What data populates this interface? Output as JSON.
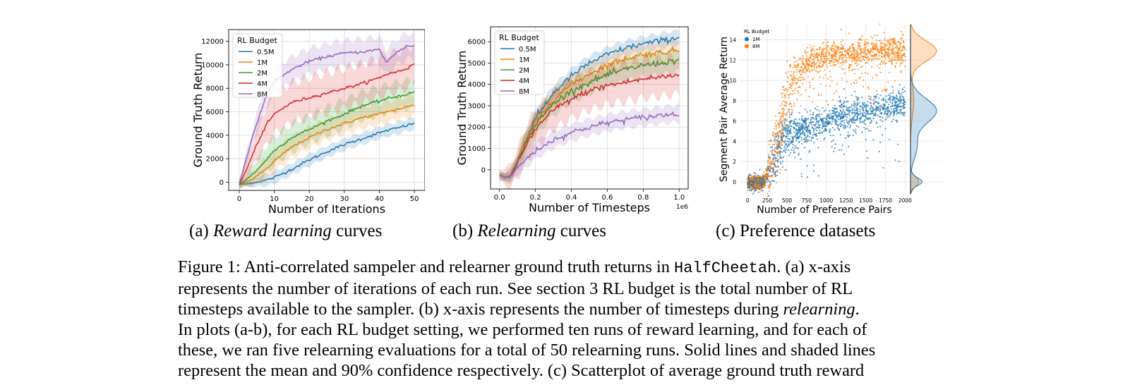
{
  "figure": {
    "panels": [
      {
        "id": "a",
        "xlabel": "Number of Iterations",
        "ylabel": "Ground Truth Return",
        "caption_prefix": "(a) ",
        "caption_italic": "Reward learning",
        "caption_suffix": " curves"
      },
      {
        "id": "b",
        "xlabel": "Number of Timesteps",
        "ylabel": "Ground Truth Return",
        "x_offset_label": "1e6",
        "caption_prefix": "(b) ",
        "caption_italic": "Relearning",
        "caption_suffix": " curves"
      },
      {
        "id": "c",
        "xlabel": "Number of Preference Pairs",
        "ylabel": "Segment Pair Average Return",
        "caption_text": "(c) Preference datasets"
      }
    ],
    "caption": {
      "line1_a": "Figure 1: Anti-correlated sampeler and relearner ground truth returns in ",
      "line1_code": "HalfCheetah",
      "line1_b": ". (a) x-axis",
      "line2": "represents the number of iterations of each run. See section 3 RL budget is the total number of RL",
      "line3_a": "timesteps available to the sampler. (b) x-axis represents the number of timesteps during ",
      "line3_italic": "relearning",
      "line3_b": ".",
      "line4": "In plots (a-b), for each RL budget setting, we performed ten runs of reward learning, and for each of",
      "line5": "these, we ran five relearning evaluations for a total of 50 relearning runs. Solid lines and shaded lines",
      "line6": "represent the mean and 90% confidence respectively. (c) Scatterplot of average ground truth reward"
    }
  },
  "chart_data": [
    {
      "type": "line",
      "title": "",
      "xlabel": "Number of Iterations",
      "ylabel": "Ground Truth Return",
      "xlim": [
        -3,
        53
      ],
      "ylim": [
        -700,
        13000
      ],
      "xticks": [
        0,
        10,
        20,
        30,
        40,
        50
      ],
      "yticks": [
        0,
        2000,
        4000,
        6000,
        8000,
        10000,
        12000
      ],
      "grid": true,
      "legend": {
        "title": "RL Budget",
        "placement": "top-left"
      },
      "x": [
        0,
        2,
        5,
        8,
        10,
        15,
        20,
        25,
        30,
        35,
        40,
        42,
        45,
        48,
        50
      ],
      "series": [
        {
          "name": "0.5M",
          "color": "#1f77b4",
          "values": [
            -200,
            -150,
            0,
            200,
            400,
            1100,
            1900,
            2600,
            3200,
            3700,
            4200,
            4400,
            4600,
            4850,
            5000
          ],
          "band": 500
        },
        {
          "name": "1M",
          "color": "#ff7f0e",
          "values": [
            -200,
            0,
            500,
            1200,
            1800,
            3000,
            3800,
            4500,
            5000,
            5500,
            5800,
            6000,
            6200,
            6400,
            6600
          ],
          "band": 900
        },
        {
          "name": "2M",
          "color": "#2ca02c",
          "values": [
            -200,
            200,
            1000,
            2000,
            2700,
            3800,
            4500,
            5200,
            5800,
            6500,
            6900,
            7100,
            7300,
            7500,
            7700
          ],
          "band": 1200
        },
        {
          "name": "4M",
          "color": "#d62728",
          "values": [
            -200,
            1000,
            3200,
            5000,
            5800,
            6800,
            7200,
            7600,
            8000,
            8400,
            8900,
            9200,
            9400,
            9700,
            10100
          ],
          "band": 1700
        },
        {
          "name": "8M",
          "color": "#9467bd",
          "values": [
            -200,
            2000,
            5000,
            7600,
            8600,
            9600,
            10300,
            10700,
            11000,
            11100,
            11300,
            10200,
            11100,
            11600,
            11600
          ],
          "band": 1100
        }
      ]
    },
    {
      "type": "line",
      "title": "",
      "xlabel": "Number of Timesteps",
      "ylabel": "Ground Truth Return",
      "x_offset_label": "1e6",
      "xlim": [
        -0.05,
        1.05
      ],
      "ylim": [
        -900,
        6700
      ],
      "xticks": [
        0.0,
        0.2,
        0.4,
        0.6,
        0.8,
        1.0
      ],
      "yticks": [
        0,
        1000,
        2000,
        3000,
        4000,
        5000,
        6000
      ],
      "grid": true,
      "legend": {
        "title": "RL Budget",
        "placement": "top-left"
      },
      "x": [
        0,
        0.03,
        0.06,
        0.1,
        0.15,
        0.2,
        0.3,
        0.4,
        0.5,
        0.6,
        0.7,
        0.8,
        0.9,
        1.0
      ],
      "series": [
        {
          "name": "0.5M",
          "color": "#1f77b4",
          "values": [
            -250,
            -350,
            -300,
            400,
            1500,
            2400,
            3600,
            4400,
            5000,
            5400,
            5700,
            5900,
            6050,
            6200
          ],
          "band": 350
        },
        {
          "name": "1M",
          "color": "#ff7f0e",
          "values": [
            -250,
            -350,
            -300,
            400,
            1400,
            2200,
            3300,
            4000,
            4500,
            4900,
            5200,
            5400,
            5500,
            5600
          ],
          "band": 450
        },
        {
          "name": "2M",
          "color": "#2ca02c",
          "values": [
            -250,
            -350,
            -300,
            350,
            1300,
            2100,
            3100,
            3700,
            4100,
            4450,
            4700,
            4900,
            5000,
            5150
          ],
          "band": 550
        },
        {
          "name": "4M",
          "color": "#d62728",
          "values": [
            -250,
            -350,
            -300,
            300,
            1200,
            1900,
            2800,
            3300,
            3700,
            3950,
            4100,
            4250,
            4350,
            4450
          ],
          "band": 900
        },
        {
          "name": "8M",
          "color": "#9467bd",
          "values": [
            -250,
            -350,
            -300,
            100,
            500,
            900,
            1400,
            1750,
            2000,
            2200,
            2350,
            2450,
            2550,
            2650
          ],
          "band": 400
        }
      ]
    },
    {
      "type": "scatter",
      "title": "",
      "xlabel": "Number of Preference Pairs",
      "ylabel": "Segment Pair Average Return",
      "xlim": [
        -100,
        2050
      ],
      "ylim": [
        -1.2,
        15.5
      ],
      "xticks": [
        0,
        250,
        500,
        750,
        1000,
        1250,
        1500,
        1750,
        2000
      ],
      "yticks": [
        0,
        2,
        4,
        6,
        8,
        10,
        12,
        14
      ],
      "grid": true,
      "legend": {
        "title": "RL Budget",
        "placement": "top-left"
      },
      "marginal": "kde-right",
      "series": [
        {
          "name": "1M",
          "color": "#1f77b4",
          "trend_x": [
            0,
            200,
            300,
            400,
            500,
            750,
            1000,
            1250,
            1500,
            1750,
            2000
          ],
          "trend_y": [
            0,
            0,
            1.5,
            3.5,
            4.5,
            5.3,
            6.0,
            6.6,
            7.0,
            7.4,
            7.7
          ]
        },
        {
          "name": "8M",
          "color": "#ff7f0e",
          "trend_x": [
            0,
            200,
            300,
            400,
            500,
            600,
            750,
            1000,
            1250,
            1500,
            1750,
            2000
          ],
          "trend_y": [
            0,
            0,
            2.0,
            5.0,
            8.5,
            10.5,
            11.6,
            12.3,
            12.6,
            12.8,
            12.9,
            12.9
          ]
        }
      ]
    }
  ]
}
